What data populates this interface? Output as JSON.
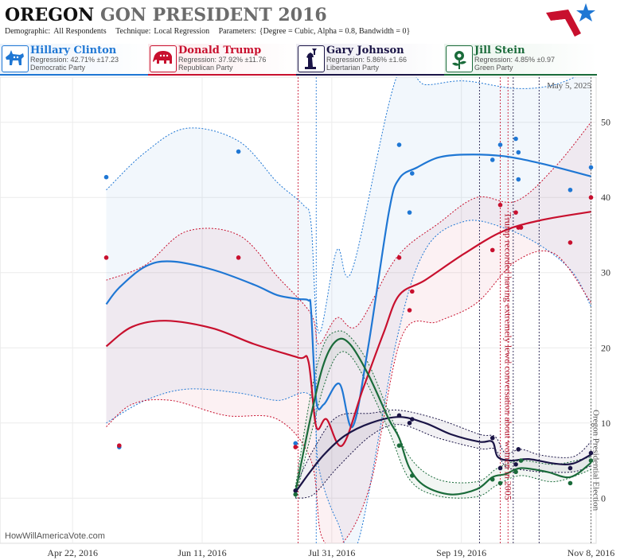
{
  "header": {
    "title_part1": "OREGON",
    "title_part2": "GON PRESIDENT 2016",
    "demographic_label": "Demographic:",
    "demographic_value": "All Respondents",
    "technique_label": "Technique:",
    "technique_value": "Local Regression",
    "parameters_label": "Parameters:",
    "parameters_value": "{Degree = Cubic, Alpha = 0.8, Bandwidth = 0}"
  },
  "candidates": [
    {
      "name": "Hillary Clinton",
      "regression": "Regression: 42.71% ±17.23",
      "party": "Democratic Party",
      "color": "#1f77d4",
      "icon": "donkey-icon"
    },
    {
      "name": "Donald Trump",
      "regression": "Regression: 37.92% ±11.76",
      "party": "Republican Party",
      "color": "#c8102e",
      "icon": "elephant-icon"
    },
    {
      "name": "Gary Johnson",
      "regression": "Regression: 5.86% ±1.66",
      "party": "Libertarian Party",
      "color": "#1a1446",
      "icon": "statue-of-liberty-icon"
    },
    {
      "name": "Jill Stein",
      "regression": "Regression: 4.85% ±0.97",
      "party": "Green Party",
      "color": "#1a6b3a",
      "icon": "rose-icon"
    }
  ],
  "watermark": "HowWillAmericaVote.com",
  "date_stamp": "May 5, 2025",
  "chart_data": {
    "type": "line",
    "x_ticks": [
      "Apr 22, 2016",
      "Jun 11, 2016",
      "Jul 31, 2016",
      "Sep 19, 2016",
      "Nov 8, 2016"
    ],
    "xlim": [
      "2016-03-25",
      "2016-11-10"
    ],
    "y_ticks": [
      0,
      10,
      20,
      30,
      40,
      50
    ],
    "ylim": [
      -6,
      56
    ],
    "grid": true,
    "annotations": [
      {
        "date": "2016-10-07",
        "text": "Trump recorded having extremely lewd conversation about women in 2005"
      },
      {
        "date": "2016-11-08",
        "text": "Oregon Presidential Election"
      }
    ],
    "event_lines": [
      {
        "date": "2016-07-18",
        "color": "#c8102e"
      },
      {
        "date": "2016-07-25",
        "color": "#1f77d4"
      },
      {
        "date": "2016-09-26",
        "color": "#1a1446"
      },
      {
        "date": "2016-10-04",
        "color": "#c8102e"
      },
      {
        "date": "2016-10-07",
        "color": "#c8102e"
      },
      {
        "date": "2016-10-09",
        "color": "#1a1446"
      },
      {
        "date": "2016-10-19",
        "color": "#1a1446"
      },
      {
        "date": "2016-11-08",
        "color": "#555555"
      }
    ],
    "series": [
      {
        "name": "Hillary Clinton",
        "color": "#1f77d4",
        "line": [
          [
            "2016-05-05",
            25.8
          ],
          [
            "2016-05-10",
            28.0
          ],
          [
            "2016-05-20",
            30.8
          ],
          [
            "2016-05-30",
            31.5
          ],
          [
            "2016-06-15",
            30.4
          ],
          [
            "2016-07-01",
            28.4
          ],
          [
            "2016-07-10",
            27.0
          ],
          [
            "2016-07-18",
            26.5
          ],
          [
            "2016-07-22",
            26.3
          ],
          [
            "2016-07-23",
            25.0
          ],
          [
            "2016-07-25",
            13.0
          ],
          [
            "2016-07-28",
            12.5
          ],
          [
            "2016-08-03",
            15.2
          ],
          [
            "2016-08-08",
            9.5
          ],
          [
            "2016-08-14",
            20.0
          ],
          [
            "2016-08-22",
            38.0
          ],
          [
            "2016-08-26",
            42.5
          ],
          [
            "2016-09-02",
            44.0
          ],
          [
            "2016-09-10",
            45.3
          ],
          [
            "2016-09-20",
            45.7
          ],
          [
            "2016-10-05",
            45.5
          ],
          [
            "2016-10-20",
            44.5
          ],
          [
            "2016-11-08",
            42.8
          ]
        ],
        "upper": [
          [
            "2016-05-05",
            41.0
          ],
          [
            "2016-05-20",
            46.0
          ],
          [
            "2016-06-05",
            49.2
          ],
          [
            "2016-06-25",
            47.5
          ],
          [
            "2016-07-10",
            42.0
          ],
          [
            "2016-07-20",
            39.0
          ],
          [
            "2016-07-23",
            36.5
          ],
          [
            "2016-07-26",
            22.0
          ],
          [
            "2016-08-02",
            33.0
          ],
          [
            "2016-08-08",
            30.5
          ],
          [
            "2016-08-25",
            56.0
          ],
          [
            "2016-09-05",
            55.0
          ],
          [
            "2016-09-20",
            55.5
          ],
          [
            "2016-10-10",
            54.5
          ],
          [
            "2016-10-25",
            55.0
          ],
          [
            "2016-11-08",
            57.0
          ]
        ],
        "lower": [
          [
            "2016-05-05",
            10.0
          ],
          [
            "2016-05-20",
            13.0
          ],
          [
            "2016-06-05",
            14.5
          ],
          [
            "2016-06-25",
            14.0
          ],
          [
            "2016-07-10",
            13.0
          ],
          [
            "2016-07-23",
            13.5
          ],
          [
            "2016-07-26",
            4.0
          ],
          [
            "2016-08-02",
            -3.0
          ],
          [
            "2016-08-10",
            -6.0
          ],
          [
            "2016-08-25",
            21.0
          ],
          [
            "2016-09-05",
            33.0
          ],
          [
            "2016-09-20",
            36.8
          ],
          [
            "2016-10-05",
            36.0
          ],
          [
            "2016-10-20",
            33.5
          ],
          [
            "2016-11-01",
            30.0
          ],
          [
            "2016-11-08",
            25.5
          ]
        ],
        "points": [
          [
            "2016-05-05",
            42.7
          ],
          [
            "2016-05-10",
            6.8
          ],
          [
            "2016-06-25",
            46.1
          ],
          [
            "2016-07-17",
            7.3
          ],
          [
            "2016-08-26",
            47.0
          ],
          [
            "2016-08-30",
            38.0
          ],
          [
            "2016-08-31",
            43.2
          ],
          [
            "2016-10-01",
            45.0
          ],
          [
            "2016-10-04",
            47.0
          ],
          [
            "2016-10-10",
            47.8
          ],
          [
            "2016-10-11",
            46.0
          ],
          [
            "2016-10-11",
            42.4
          ],
          [
            "2016-10-31",
            41.0
          ],
          [
            "2016-11-08",
            44.0
          ]
        ]
      },
      {
        "name": "Donald Trump",
        "color": "#c8102e",
        "line": [
          [
            "2016-05-05",
            20.2
          ],
          [
            "2016-05-15",
            22.8
          ],
          [
            "2016-05-28",
            23.6
          ],
          [
            "2016-06-15",
            22.6
          ],
          [
            "2016-07-01",
            20.5
          ],
          [
            "2016-07-18",
            18.7
          ],
          [
            "2016-07-22",
            18.2
          ],
          [
            "2016-07-25",
            9.5
          ],
          [
            "2016-07-29",
            10.5
          ],
          [
            "2016-08-04",
            7.0
          ],
          [
            "2016-08-12",
            14.5
          ],
          [
            "2016-08-20",
            22.0
          ],
          [
            "2016-08-26",
            27.0
          ],
          [
            "2016-09-05",
            29.0
          ],
          [
            "2016-09-20",
            32.5
          ],
          [
            "2016-10-05",
            35.5
          ],
          [
            "2016-10-20",
            37.0
          ],
          [
            "2016-11-08",
            38.1
          ]
        ],
        "upper": [
          [
            "2016-05-05",
            29.0
          ],
          [
            "2016-05-20",
            31.0
          ],
          [
            "2016-06-05",
            35.5
          ],
          [
            "2016-06-25",
            35.0
          ],
          [
            "2016-07-10",
            29.5
          ],
          [
            "2016-07-23",
            24.5
          ],
          [
            "2016-07-26",
            20.5
          ],
          [
            "2016-08-02",
            24.0
          ],
          [
            "2016-08-10",
            23.0
          ],
          [
            "2016-08-25",
            32.0
          ],
          [
            "2016-09-10",
            36.5
          ],
          [
            "2016-09-25",
            40.0
          ],
          [
            "2016-10-10",
            39.5
          ],
          [
            "2016-10-25",
            44.0
          ],
          [
            "2016-11-08",
            50.0
          ]
        ],
        "lower": [
          [
            "2016-05-05",
            9.5
          ],
          [
            "2016-05-15",
            12.5
          ],
          [
            "2016-05-30",
            13.0
          ],
          [
            "2016-06-20",
            11.0
          ],
          [
            "2016-07-10",
            10.5
          ],
          [
            "2016-07-23",
            5.0
          ],
          [
            "2016-07-27",
            -5.0
          ],
          [
            "2016-08-04",
            -6.0
          ],
          [
            "2016-08-15",
            2.0
          ],
          [
            "2016-08-27",
            21.5
          ],
          [
            "2016-09-10",
            23.5
          ],
          [
            "2016-09-25",
            26.0
          ],
          [
            "2016-10-10",
            31.5
          ],
          [
            "2016-10-25",
            32.5
          ],
          [
            "2016-11-08",
            26.0
          ]
        ],
        "points": [
          [
            "2016-05-05",
            32.0
          ],
          [
            "2016-05-10",
            7.0
          ],
          [
            "2016-06-25",
            32.0
          ],
          [
            "2016-07-17",
            6.8
          ],
          [
            "2016-08-26",
            32.0
          ],
          [
            "2016-08-30",
            25.0
          ],
          [
            "2016-08-31",
            27.5
          ],
          [
            "2016-10-01",
            33.0
          ],
          [
            "2016-10-04",
            39.0
          ],
          [
            "2016-10-10",
            38.0
          ],
          [
            "2016-10-11",
            36.0
          ],
          [
            "2016-10-12",
            36.0
          ],
          [
            "2016-10-31",
            34.0
          ],
          [
            "2016-11-08",
            40.0
          ]
        ]
      },
      {
        "name": "Gary Johnson",
        "color": "#1a1446",
        "line": [
          [
            "2016-07-17",
            0.8
          ],
          [
            "2016-07-22",
            3.2
          ],
          [
            "2016-07-28",
            5.8
          ],
          [
            "2016-08-05",
            8.3
          ],
          [
            "2016-08-15",
            10.0
          ],
          [
            "2016-08-26",
            10.8
          ],
          [
            "2016-09-05",
            10.0
          ],
          [
            "2016-09-15",
            8.5
          ],
          [
            "2016-09-26",
            7.5
          ],
          [
            "2016-10-01",
            7.5
          ],
          [
            "2016-10-03",
            5.5
          ],
          [
            "2016-10-08",
            5.0
          ],
          [
            "2016-10-15",
            5.2
          ],
          [
            "2016-10-25",
            4.6
          ],
          [
            "2016-11-01",
            4.6
          ],
          [
            "2016-11-08",
            5.8
          ]
        ],
        "upper": [
          [
            "2016-07-17",
            1.6
          ],
          [
            "2016-07-24",
            6.5
          ],
          [
            "2016-08-02",
            10.8
          ],
          [
            "2016-08-15",
            11.3
          ],
          [
            "2016-08-26",
            11.7
          ],
          [
            "2016-09-10",
            10.5
          ],
          [
            "2016-09-26",
            8.5
          ],
          [
            "2016-10-02",
            8.2
          ],
          [
            "2016-10-06",
            6.0
          ],
          [
            "2016-10-12",
            6.5
          ],
          [
            "2016-10-20",
            5.7
          ],
          [
            "2016-11-01",
            5.5
          ],
          [
            "2016-11-08",
            7.5
          ]
        ],
        "lower": [
          [
            "2016-07-17",
            0.0
          ],
          [
            "2016-07-24",
            0.5
          ],
          [
            "2016-08-02",
            4.0
          ],
          [
            "2016-08-15",
            8.3
          ],
          [
            "2016-08-26",
            9.8
          ],
          [
            "2016-09-10",
            8.0
          ],
          [
            "2016-09-26",
            6.6
          ],
          [
            "2016-10-02",
            6.5
          ],
          [
            "2016-10-06",
            4.2
          ],
          [
            "2016-10-12",
            3.8
          ],
          [
            "2016-10-20",
            3.5
          ],
          [
            "2016-11-01",
            3.5
          ],
          [
            "2016-11-08",
            4.3
          ]
        ],
        "points": [
          [
            "2016-07-17",
            1.0
          ],
          [
            "2016-08-26",
            11.0
          ],
          [
            "2016-08-30",
            10.0
          ],
          [
            "2016-08-31",
            10.5
          ],
          [
            "2016-10-01",
            8.0
          ],
          [
            "2016-10-04",
            4.0
          ],
          [
            "2016-10-10",
            4.5
          ],
          [
            "2016-10-11",
            6.5
          ],
          [
            "2016-10-31",
            4.0
          ],
          [
            "2016-11-08",
            6.0
          ]
        ]
      },
      {
        "name": "Jill Stein",
        "color": "#1a6b3a",
        "line": [
          [
            "2016-07-17",
            0.8
          ],
          [
            "2016-07-23",
            11.0
          ],
          [
            "2016-07-28",
            18.0
          ],
          [
            "2016-08-02",
            21.0
          ],
          [
            "2016-08-07",
            20.5
          ],
          [
            "2016-08-14",
            16.5
          ],
          [
            "2016-08-22",
            10.5
          ],
          [
            "2016-08-26",
            8.0
          ],
          [
            "2016-08-30",
            4.0
          ],
          [
            "2016-09-05",
            1.6
          ],
          [
            "2016-09-15",
            0.5
          ],
          [
            "2016-09-25",
            1.2
          ],
          [
            "2016-10-01",
            2.8
          ],
          [
            "2016-10-06",
            3.2
          ],
          [
            "2016-10-12",
            4.0
          ],
          [
            "2016-10-22",
            3.5
          ],
          [
            "2016-10-31",
            2.8
          ],
          [
            "2016-11-08",
            4.7
          ]
        ],
        "upper": [
          [
            "2016-07-17",
            1.5
          ],
          [
            "2016-07-23",
            14.0
          ],
          [
            "2016-07-28",
            20.5
          ],
          [
            "2016-08-02",
            22.2
          ],
          [
            "2016-08-07",
            21.5
          ],
          [
            "2016-08-14",
            18.0
          ],
          [
            "2016-08-22",
            11.5
          ],
          [
            "2016-08-30",
            5.5
          ],
          [
            "2016-09-10",
            2.5
          ],
          [
            "2016-09-25",
            2.2
          ],
          [
            "2016-10-03",
            4.0
          ],
          [
            "2016-10-12",
            5.0
          ],
          [
            "2016-10-25",
            4.5
          ],
          [
            "2016-11-08",
            5.5
          ]
        ],
        "lower": [
          [
            "2016-07-17",
            0.0
          ],
          [
            "2016-07-23",
            8.5
          ],
          [
            "2016-07-28",
            15.0
          ],
          [
            "2016-08-02",
            19.0
          ],
          [
            "2016-08-07",
            19.0
          ],
          [
            "2016-08-14",
            15.0
          ],
          [
            "2016-08-22",
            9.0
          ],
          [
            "2016-08-30",
            2.5
          ],
          [
            "2016-09-10",
            0.3
          ],
          [
            "2016-09-25",
            0.2
          ],
          [
            "2016-10-03",
            1.8
          ],
          [
            "2016-10-12",
            3.0
          ],
          [
            "2016-10-25",
            2.2
          ],
          [
            "2016-11-08",
            3.8
          ]
        ],
        "points": [
          [
            "2016-07-17",
            0.5
          ],
          [
            "2016-08-26",
            7.0
          ],
          [
            "2016-08-31",
            3.0
          ],
          [
            "2016-10-01",
            2.5
          ],
          [
            "2016-10-04",
            2.0
          ],
          [
            "2016-10-10",
            3.5
          ],
          [
            "2016-10-12",
            5.0
          ],
          [
            "2016-10-31",
            2.0
          ],
          [
            "2016-11-08",
            5.0
          ]
        ]
      }
    ]
  }
}
